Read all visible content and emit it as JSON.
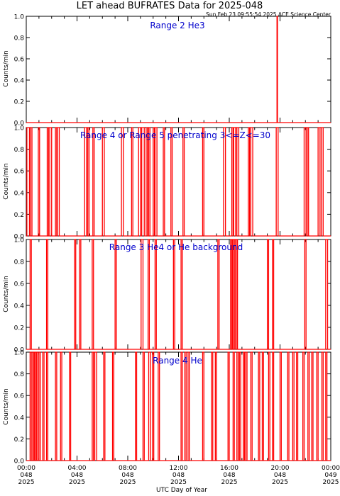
{
  "title": "LET ahead BUFRATES Data for 2025-048",
  "timestamp": "Sun Feb 23 09:55:54 2025 ACE Science Center",
  "colors": {
    "series": "#ff0000",
    "panel_label": "#0000cc",
    "axes": "#000000"
  },
  "chart_data": [
    {
      "type": "line",
      "title": "Range 2 He3",
      "ylabel": "Counts/min",
      "ylim": [
        0,
        1
      ],
      "y_ticks": [
        "0.0",
        "0.2",
        "0.4",
        "0.6",
        "0.8",
        "1.0"
      ],
      "xlim": [
        0,
        24
      ],
      "pulses": [
        [
          19.76,
          19.8
        ]
      ]
    },
    {
      "type": "line",
      "title": "Range 4 or Range 5 penetrating 3<=Z<=30",
      "ylabel": "Counts/min",
      "ylim": [
        0,
        1
      ],
      "y_ticks": [
        "0.0",
        "0.2",
        "0.4",
        "0.6",
        "0.8",
        "1.0"
      ],
      "xlim": [
        0,
        24
      ],
      "pulses": [
        [
          0.05,
          0.25
        ],
        [
          0.35,
          0.45
        ],
        [
          0.95,
          1.05
        ],
        [
          1.65,
          1.75
        ],
        [
          1.85,
          2.0
        ],
        [
          2.3,
          2.4
        ],
        [
          2.45,
          2.6
        ],
        [
          4.6,
          4.75
        ],
        [
          4.85,
          4.95
        ],
        [
          5.25,
          5.35
        ],
        [
          6.0,
          6.15
        ],
        [
          7.5,
          7.65
        ],
        [
          8.3,
          8.4
        ],
        [
          8.85,
          9.0
        ],
        [
          9.1,
          9.3
        ],
        [
          9.45,
          9.55
        ],
        [
          9.65,
          9.75
        ],
        [
          10.0,
          10.1
        ],
        [
          10.15,
          10.3
        ],
        [
          10.8,
          10.9
        ],
        [
          11.4,
          11.5
        ],
        [
          12.35,
          12.45
        ],
        [
          13.9,
          14.0
        ],
        [
          15.55,
          15.7
        ],
        [
          16.2,
          16.3
        ],
        [
          16.35,
          16.5
        ],
        [
          16.6,
          16.75
        ],
        [
          17.5,
          17.6
        ],
        [
          17.7,
          17.85
        ],
        [
          19.7,
          19.85
        ],
        [
          21.9,
          22.05
        ],
        [
          22.15,
          22.25
        ],
        [
          23.0,
          23.15
        ],
        [
          23.25,
          23.4
        ]
      ]
    },
    {
      "type": "line",
      "title": "Range 3 He4 or He background",
      "ylabel": "Counts/min",
      "ylim": [
        0,
        1
      ],
      "y_ticks": [
        "0.0",
        "0.2",
        "0.4",
        "0.6",
        "0.8",
        "1.0"
      ],
      "xlim": [
        0,
        24
      ],
      "pulses": [
        [
          0.3,
          0.4
        ],
        [
          1.6,
          1.7
        ],
        [
          3.8,
          3.9
        ],
        [
          4.2,
          4.3
        ],
        [
          5.2,
          5.3
        ],
        [
          7.0,
          7.1
        ],
        [
          9.05,
          9.2
        ],
        [
          9.6,
          9.7
        ],
        [
          10.15,
          10.25
        ],
        [
          11.6,
          11.7
        ],
        [
          12.2,
          12.3
        ],
        [
          15.1,
          15.2
        ],
        [
          16.1,
          16.2
        ],
        [
          16.25,
          16.35
        ],
        [
          16.4,
          16.5
        ],
        [
          16.55,
          16.65
        ],
        [
          19.0,
          19.1
        ],
        [
          19.4,
          19.5
        ],
        [
          21.95,
          22.05
        ],
        [
          23.6,
          23.75
        ]
      ]
    },
    {
      "type": "line",
      "title": "Range 4 He",
      "ylabel": "Counts/min",
      "ylim": [
        0,
        1
      ],
      "y_ticks": [
        "0.0",
        "0.2",
        "0.4",
        "0.6",
        "0.8",
        "1.0"
      ],
      "xlim": [
        0,
        24
      ],
      "x_tick_labels": [
        {
          "time": "00:00",
          "doy": "048",
          "year": "2025"
        },
        {
          "time": "04:00",
          "doy": "048",
          "year": "2025"
        },
        {
          "time": "08:00",
          "doy": "048",
          "year": "2025"
        },
        {
          "time": "12:00",
          "doy": "048",
          "year": "2025"
        },
        {
          "time": "16:00",
          "doy": "048",
          "year": "2025"
        },
        {
          "time": "20:00",
          "doy": "048",
          "year": "2025"
        },
        {
          "time": "00:00",
          "doy": "049",
          "year": "2025"
        }
      ],
      "xlabel": "UTC Day of Year",
      "pulses": [
        [
          0.3,
          0.4
        ],
        [
          0.5,
          0.6
        ],
        [
          0.65,
          0.75
        ],
        [
          0.8,
          0.9
        ],
        [
          1.0,
          1.1
        ],
        [
          1.3,
          1.4
        ],
        [
          1.6,
          1.7
        ],
        [
          2.3,
          2.4
        ],
        [
          2.7,
          2.8
        ],
        [
          3.4,
          3.5
        ],
        [
          5.2,
          5.3
        ],
        [
          5.4,
          5.55
        ],
        [
          6.1,
          6.2
        ],
        [
          6.8,
          6.9
        ],
        [
          8.6,
          8.7
        ],
        [
          9.2,
          9.3
        ],
        [
          9.65,
          9.8
        ],
        [
          9.95,
          10.05
        ],
        [
          10.4,
          10.5
        ],
        [
          12.2,
          12.3
        ],
        [
          12.5,
          12.6
        ],
        [
          12.75,
          12.85
        ],
        [
          13.9,
          14.0
        ],
        [
          14.6,
          14.7
        ],
        [
          14.9,
          15.0
        ],
        [
          15.9,
          16.0
        ],
        [
          16.3,
          16.4
        ],
        [
          16.6,
          16.7
        ],
        [
          16.8,
          16.9
        ],
        [
          17.1,
          17.2
        ],
        [
          17.3,
          17.4
        ],
        [
          17.7,
          17.8
        ],
        [
          18.3,
          18.4
        ],
        [
          18.6,
          18.7
        ],
        [
          19.1,
          19.2
        ],
        [
          19.4,
          19.5
        ],
        [
          20.0,
          20.1
        ],
        [
          20.6,
          20.7
        ],
        [
          21.0,
          21.1
        ],
        [
          21.3,
          21.4
        ],
        [
          21.8,
          21.9
        ],
        [
          22.2,
          22.3
        ],
        [
          22.5,
          22.6
        ],
        [
          22.9,
          23.0
        ],
        [
          23.3,
          23.4
        ],
        [
          23.6,
          23.7
        ]
      ]
    }
  ]
}
